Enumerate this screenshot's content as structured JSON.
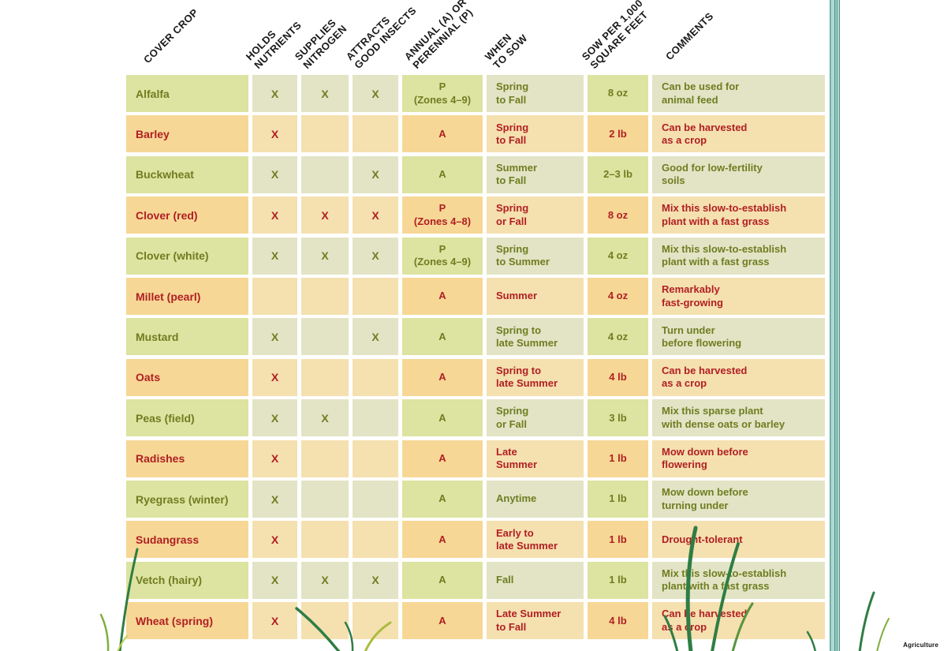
{
  "page": {
    "credit": "Agriculture"
  },
  "colors": {
    "green_row_primary": "#dde3a0",
    "green_row_secondary": "#e2e4c5",
    "green_text": "#6f7d21",
    "orange_row_primary": "#f7d795",
    "orange_row_secondary": "#f5e0af",
    "red_text": "#b01f23",
    "header_text": "#1a1a1a",
    "divider_teal_dark": "#4f948a",
    "divider_teal_light": "#aed9d2",
    "grass_dark_green": "#2f7d44",
    "grass_yellow_green": "#a9bc3e"
  },
  "table": {
    "columns": [
      {
        "id": "crop",
        "label": "COVER CROP",
        "lines": [
          "COVER CROP"
        ]
      },
      {
        "id": "holds",
        "label": "HOLDS NUTRIENTS",
        "lines": [
          "HOLDS",
          "NUTRIENTS"
        ]
      },
      {
        "id": "supplies",
        "label": "SUPPLIES NITROGEN",
        "lines": [
          "SUPPLIES",
          "NITROGEN"
        ]
      },
      {
        "id": "attracts",
        "label": "ATTRACTS GOOD INSECTS",
        "lines": [
          "ATTRACTS",
          "GOOD INSECTS"
        ]
      },
      {
        "id": "annual",
        "label": "ANNUAL (A) OR PERENNIAL (P)",
        "lines": [
          "ANNUAL (A) OR",
          "PERENNIAL (P)"
        ]
      },
      {
        "id": "when",
        "label": "WHEN TO SOW",
        "lines": [
          "WHEN",
          "TO SOW"
        ]
      },
      {
        "id": "sow",
        "label": "SOW PER 1,000 SQUARE FEET",
        "lines": [
          "SOW PER 1,000",
          "SQUARE FEET"
        ]
      },
      {
        "id": "comments",
        "label": "COMMENTS",
        "lines": [
          "COMMENTS"
        ]
      }
    ],
    "rows": [
      {
        "theme": "green",
        "crop": "Alfalfa",
        "holds": "X",
        "supplies": "X",
        "attracts": "X",
        "annual": "P\n(Zones 4–9)",
        "when": "Spring\nto Fall",
        "sow": "8 oz",
        "comments": "Can be used for\nanimal feed"
      },
      {
        "theme": "orange",
        "crop": "Barley",
        "holds": "X",
        "supplies": "",
        "attracts": "",
        "annual": "A",
        "when": "Spring\nto Fall",
        "sow": "2 lb",
        "comments": "Can be harvested\nas a crop"
      },
      {
        "theme": "green",
        "crop": "Buckwheat",
        "holds": "X",
        "supplies": "",
        "attracts": "X",
        "annual": "A",
        "when": "Summer\nto Fall",
        "sow": "2–3 lb",
        "comments": "Good for low-fertility\nsoils"
      },
      {
        "theme": "orange",
        "crop": "Clover (red)",
        "holds": "X",
        "supplies": "X",
        "attracts": "X",
        "annual": "P\n(Zones 4–8)",
        "when": "Spring\nor Fall",
        "sow": "8 oz",
        "comments": "Mix this slow-to-establish\nplant with a fast grass"
      },
      {
        "theme": "green",
        "crop": "Clover (white)",
        "holds": "X",
        "supplies": "X",
        "attracts": "X",
        "annual": "P\n(Zones 4–9)",
        "when": "Spring\nto Summer",
        "sow": "4 oz",
        "comments": "Mix this slow-to-establish\nplant with a fast grass"
      },
      {
        "theme": "orange",
        "crop": "Millet (pearl)",
        "holds": "",
        "supplies": "",
        "attracts": "",
        "annual": "A",
        "when": "Summer",
        "sow": "4 oz",
        "comments": "Remarkably\nfast-growing"
      },
      {
        "theme": "green",
        "crop": "Mustard",
        "holds": "X",
        "supplies": "",
        "attracts": "X",
        "annual": "A",
        "when": "Spring to\nlate Summer",
        "sow": "4 oz",
        "comments": "Turn under\nbefore flowering"
      },
      {
        "theme": "orange",
        "crop": "Oats",
        "holds": "X",
        "supplies": "",
        "attracts": "",
        "annual": "A",
        "when": "Spring to\nlate Summer",
        "sow": "4 lb",
        "comments": "Can be harvested\nas a crop"
      },
      {
        "theme": "green",
        "crop": "Peas (field)",
        "holds": "X",
        "supplies": "X",
        "attracts": "",
        "annual": "A",
        "when": "Spring\nor Fall",
        "sow": "3 lb",
        "comments": "Mix this sparse plant\nwith dense oats or barley"
      },
      {
        "theme": "orange",
        "crop": "Radishes",
        "holds": "X",
        "supplies": "",
        "attracts": "",
        "annual": "A",
        "when": "Late\nSummer",
        "sow": "1 lb",
        "comments": "Mow down before\nflowering"
      },
      {
        "theme": "green",
        "crop": "Ryegrass (winter)",
        "holds": "X",
        "supplies": "",
        "attracts": "",
        "annual": "A",
        "when": "Anytime",
        "sow": "1 lb",
        "comments": "Mow down before\nturning under"
      },
      {
        "theme": "orange",
        "crop": "Sudangrass",
        "holds": "X",
        "supplies": "",
        "attracts": "",
        "annual": "A",
        "when": "Early to\nlate Summer",
        "sow": "1 lb",
        "comments": "Drought-tolerant"
      },
      {
        "theme": "green",
        "crop": "Vetch (hairy)",
        "holds": "X",
        "supplies": "X",
        "attracts": "X",
        "annual": "A",
        "when": "Fall",
        "sow": "1 lb",
        "comments": "Mix this slow-to-establish\nplant with a fast grass"
      },
      {
        "theme": "orange",
        "crop": "Wheat (spring)",
        "holds": "X",
        "supplies": "",
        "attracts": "",
        "annual": "A",
        "when": "Late Summer\nto Fall",
        "sow": "4 lb",
        "comments": "Can be harvested\nas a crop"
      }
    ]
  }
}
